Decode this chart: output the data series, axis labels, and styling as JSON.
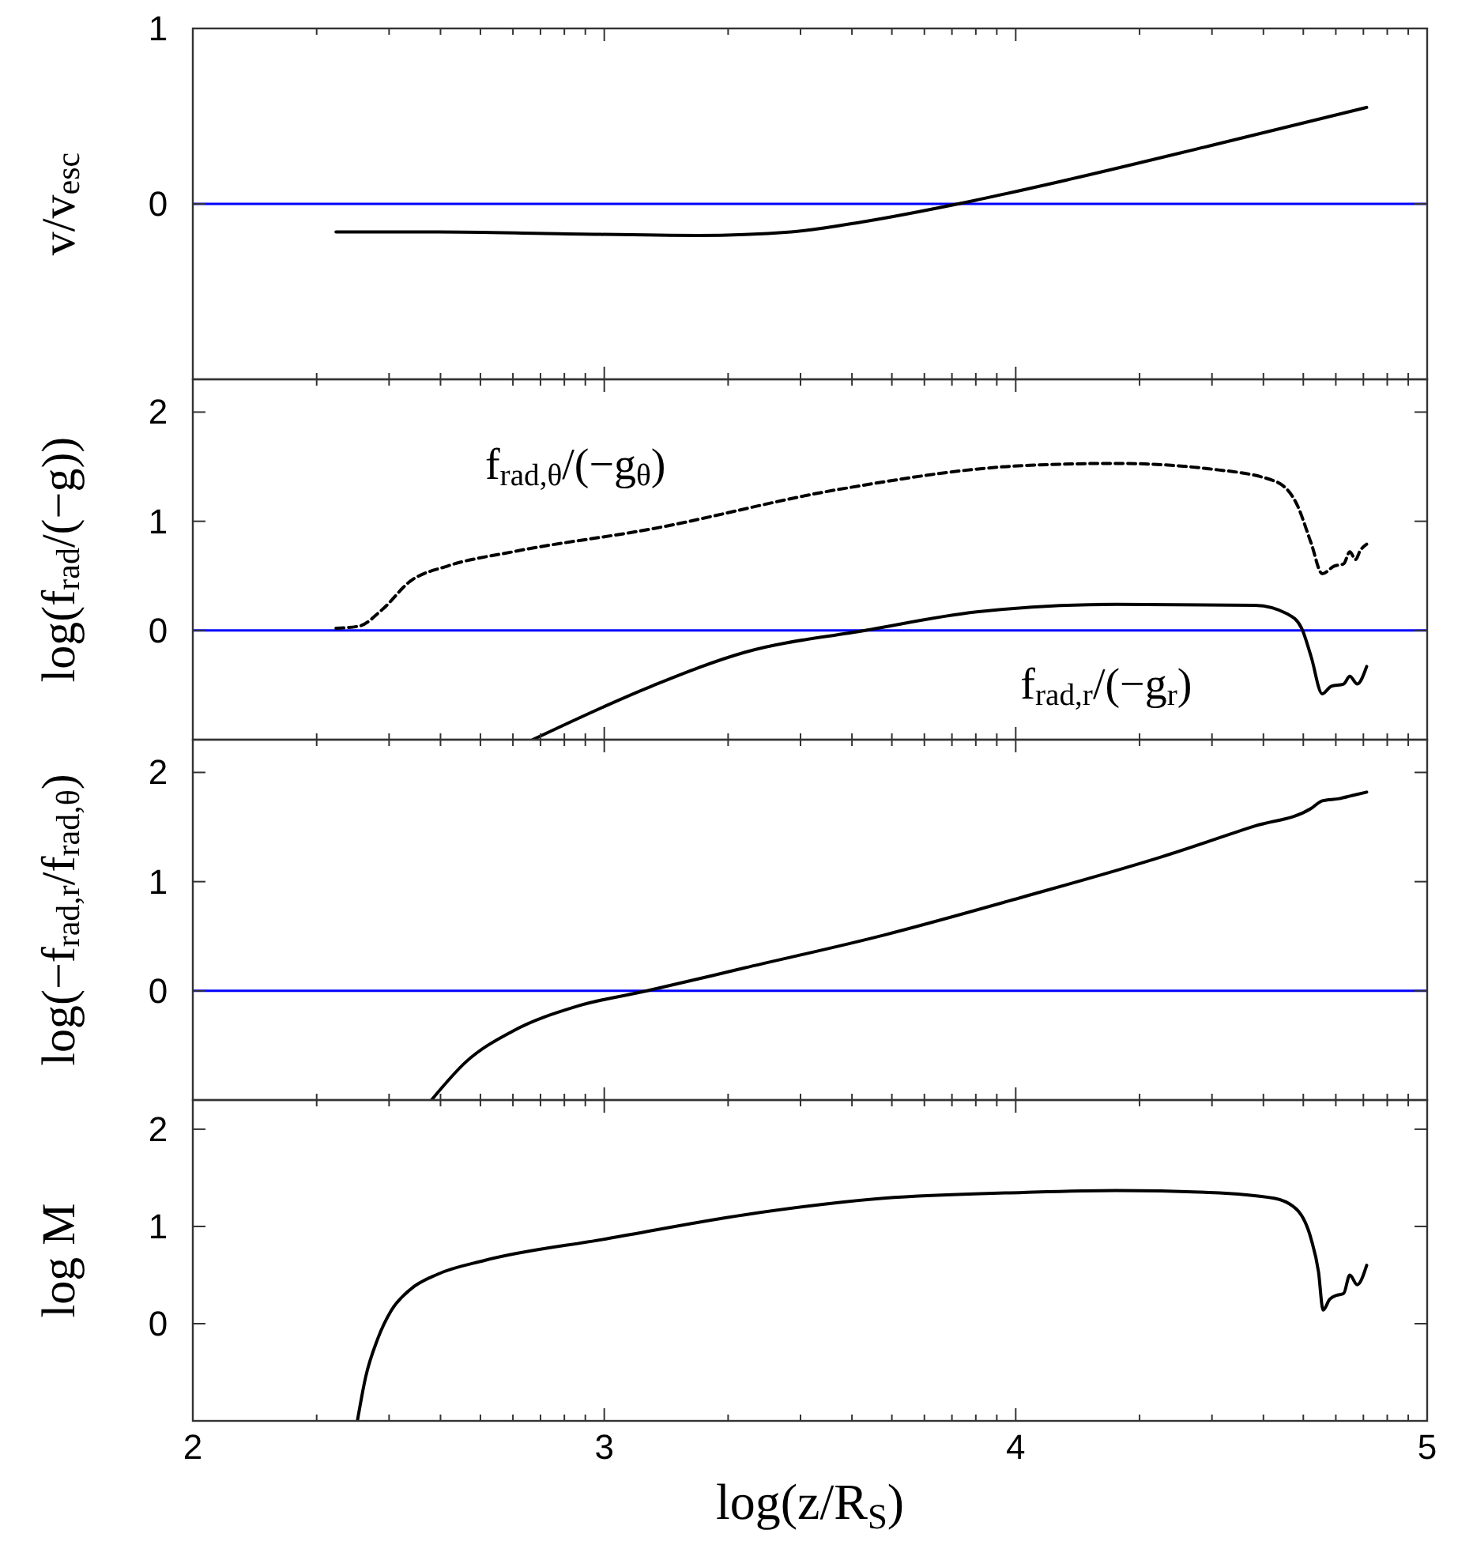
{
  "chart_data": [
    {
      "type": "line",
      "ylabel": "v/v$_{esc}$",
      "xlim": [
        2,
        5
      ],
      "ylim": [
        -1,
        1
      ],
      "yticks": [
        0,
        1
      ],
      "tick_labels": "y",
      "xticks": [
        2,
        {
          "value": 2.301,
          "label": null
        },
        {
          "value": 2.477,
          "label": null
        },
        {
          "value": 2.602,
          "label": null
        },
        {
          "value": 2.699,
          "label": null
        },
        {
          "value": 2.778,
          "label": null
        },
        {
          "value": 2.845,
          "label": null
        },
        {
          "value": 2.903,
          "label": null
        },
        {
          "value": 2.954,
          "label": null
        },
        3,
        {
          "value": 3.301,
          "label": null
        },
        {
          "value": 3.477,
          "label": null
        },
        {
          "value": 3.602,
          "label": null
        },
        {
          "value": 3.699,
          "label": null
        },
        {
          "value": 3.778,
          "label": null
        },
        {
          "value": 3.845,
          "label": null
        },
        {
          "value": 3.903,
          "label": null
        },
        {
          "value": 3.954,
          "label": null
        },
        4,
        {
          "value": 4.301,
          "label": null
        },
        {
          "value": 4.477,
          "label": null
        },
        {
          "value": 4.602,
          "label": null
        },
        {
          "value": 4.699,
          "label": null
        },
        {
          "value": 4.778,
          "label": null
        },
        {
          "value": 4.845,
          "label": null
        },
        {
          "value": 4.903,
          "label": null
        },
        {
          "value": 4.954,
          "label": null
        },
        5
      ],
      "ref_lines": [
        {
          "axis": "y",
          "value": 0,
          "color": "#0000ff"
        }
      ],
      "series": [
        {
          "color": "#000000",
          "line_style": "solid",
          "x": [
            2.348,
            2.596,
            2.889,
            3.228,
            3.454,
            3.634,
            3.86,
            4.131,
            4.47,
            4.853
          ],
          "values": [
            -0.16,
            -0.16,
            -0.17,
            -0.18,
            -0.16,
            -0.1,
            0,
            0.14,
            0.33,
            0.55
          ]
        }
      ]
    },
    {
      "type": "line",
      "ylabel": "log(f$_{rad}$/(−g))",
      "xlim": [
        2,
        5
      ],
      "ylim": [
        -1,
        2.3
      ],
      "yticks": [
        0,
        1,
        2
      ],
      "tick_labels": "y",
      "xticks": [
        2,
        {
          "value": 2.301,
          "label": null
        },
        {
          "value": 2.477,
          "label": null
        },
        {
          "value": 2.602,
          "label": null
        },
        {
          "value": 2.699,
          "label": null
        },
        {
          "value": 2.778,
          "label": null
        },
        {
          "value": 2.845,
          "label": null
        },
        {
          "value": 2.903,
          "label": null
        },
        {
          "value": 2.954,
          "label": null
        },
        3,
        {
          "value": 3.301,
          "label": null
        },
        {
          "value": 3.477,
          "label": null
        },
        {
          "value": 3.602,
          "label": null
        },
        {
          "value": 3.699,
          "label": null
        },
        {
          "value": 3.778,
          "label": null
        },
        {
          "value": 3.845,
          "label": null
        },
        {
          "value": 3.903,
          "label": null
        },
        {
          "value": 3.954,
          "label": null
        },
        4,
        {
          "value": 4.301,
          "label": null
        },
        {
          "value": 4.477,
          "label": null
        },
        {
          "value": 4.602,
          "label": null
        },
        {
          "value": 4.699,
          "label": null
        },
        {
          "value": 4.778,
          "label": null
        },
        {
          "value": 4.845,
          "label": null
        },
        {
          "value": 4.903,
          "label": null
        },
        {
          "value": 4.954,
          "label": null
        },
        5
      ],
      "ref_lines": [
        {
          "axis": "y",
          "value": 0,
          "color": "#0000ff"
        }
      ],
      "series": [
        {
          "name": "f$_{rad,θ}$/(−g$_{θ}$)",
          "color": "#000000",
          "line_style": "dashed",
          "x": [
            2.348,
            2.404,
            2.46,
            2.528,
            2.619,
            2.777,
            3.115,
            3.567,
            4.018,
            4.244,
            4.47,
            4.628,
            4.684,
            4.718,
            4.745,
            4.774,
            4.797,
            4.812,
            4.826,
            4.837,
            4.853
          ],
          "values": [
            0.02,
            0.04,
            0.19,
            0.45,
            0.59,
            0.72,
            0.93,
            1.29,
            1.51,
            1.53,
            1.48,
            1.37,
            1.15,
            0.8,
            0.52,
            0.59,
            0.61,
            0.72,
            0.65,
            0.73,
            0.79
          ]
        },
        {
          "name": "f$_{rad,r}$/(−g$_{r}$)",
          "color": "#000000",
          "line_style": "solid",
          "x": [
            2.826,
            3.115,
            3.341,
            3.634,
            3.905,
            4.244,
            4.582,
            4.661,
            4.695,
            4.718,
            4.745,
            4.767,
            4.797,
            4.812,
            4.83,
            4.853
          ],
          "values": [
            -1,
            -0.51,
            -0.2,
            0,
            0.17,
            0.24,
            0.23,
            0.15,
            0.02,
            -0.24,
            -0.58,
            -0.51,
            -0.49,
            -0.42,
            -0.49,
            -0.33
          ]
        }
      ]
    },
    {
      "type": "line",
      "ylabel": "log(−f$_{rad,r}$/f$_{rad,θ}$)",
      "xlim": [
        2,
        5
      ],
      "ylim": [
        -1,
        2.3
      ],
      "yticks": [
        0,
        1,
        2
      ],
      "tick_labels": "y",
      "xticks": [
        2,
        {
          "value": 2.301,
          "label": null
        },
        {
          "value": 2.477,
          "label": null
        },
        {
          "value": 2.602,
          "label": null
        },
        {
          "value": 2.699,
          "label": null
        },
        {
          "value": 2.778,
          "label": null
        },
        {
          "value": 2.845,
          "label": null
        },
        {
          "value": 2.903,
          "label": null
        },
        {
          "value": 2.954,
          "label": null
        },
        3,
        {
          "value": 3.301,
          "label": null
        },
        {
          "value": 3.477,
          "label": null
        },
        {
          "value": 3.602,
          "label": null
        },
        {
          "value": 3.699,
          "label": null
        },
        {
          "value": 3.778,
          "label": null
        },
        {
          "value": 3.845,
          "label": null
        },
        {
          "value": 3.903,
          "label": null
        },
        {
          "value": 3.954,
          "label": null
        },
        4,
        {
          "value": 4.301,
          "label": null
        },
        {
          "value": 4.477,
          "label": null
        },
        {
          "value": 4.602,
          "label": null
        },
        {
          "value": 4.699,
          "label": null
        },
        {
          "value": 4.778,
          "label": null
        },
        {
          "value": 4.845,
          "label": null
        },
        {
          "value": 4.903,
          "label": null
        },
        {
          "value": 4.954,
          "label": null
        },
        5
      ],
      "ref_lines": [
        {
          "axis": "y",
          "value": 0,
          "color": "#0000ff"
        }
      ],
      "series": [
        {
          "color": "#000000",
          "line_style": "solid",
          "x": [
            2.58,
            2.664,
            2.777,
            2.935,
            3.104,
            3.341,
            3.679,
            4.018,
            4.357,
            4.582,
            4.718,
            4.745,
            4.786,
            4.819,
            4.853
          ],
          "values": [
            -1,
            -0.65,
            -0.37,
            -0.14,
            0,
            0.21,
            0.51,
            0.86,
            1.23,
            1.51,
            1.67,
            1.74,
            1.76,
            1.79,
            1.82
          ]
        }
      ]
    },
    {
      "type": "line",
      "ylabel": "log M",
      "xlabel": "log(z/R$_{S}$)",
      "xlim": [
        2,
        5
      ],
      "ylim": [
        -1,
        2.3
      ],
      "yticks": [
        0,
        1,
        2
      ],
      "xticks": [
        2,
        {
          "value": 2.301,
          "label": null
        },
        {
          "value": 2.477,
          "label": null
        },
        {
          "value": 2.602,
          "label": null
        },
        {
          "value": 2.699,
          "label": null
        },
        {
          "value": 2.778,
          "label": null
        },
        {
          "value": 2.845,
          "label": null
        },
        {
          "value": 2.903,
          "label": null
        },
        {
          "value": 2.954,
          "label": null
        },
        3,
        {
          "value": 3.301,
          "label": null
        },
        {
          "value": 3.477,
          "label": null
        },
        {
          "value": 3.602,
          "label": null
        },
        {
          "value": 3.699,
          "label": null
        },
        {
          "value": 3.778,
          "label": null
        },
        {
          "value": 3.845,
          "label": null
        },
        {
          "value": 3.903,
          "label": null
        },
        {
          "value": 3.954,
          "label": null
        },
        4,
        {
          "value": 4.301,
          "label": null
        },
        {
          "value": 4.477,
          "label": null
        },
        {
          "value": 4.602,
          "label": null
        },
        {
          "value": 4.699,
          "label": null
        },
        {
          "value": 4.778,
          "label": null
        },
        {
          "value": 4.845,
          "label": null
        },
        {
          "value": 4.903,
          "label": null
        },
        {
          "value": 4.954,
          "label": null
        },
        5
      ],
      "series": [
        {
          "color": "#000000",
          "line_style": "solid",
          "x": [
            2.4,
            2.42,
            2.449,
            2.483,
            2.528,
            2.596,
            2.709,
            3.002,
            3.341,
            3.679,
            4.018,
            4.244,
            4.47,
            4.628,
            4.684,
            4.718,
            4.736,
            4.747,
            4.763,
            4.779,
            4.797,
            4.812,
            4.83,
            4.853
          ],
          "values": [
            -1,
            -0.55,
            -0.16,
            0.14,
            0.35,
            0.51,
            0.65,
            0.87,
            1.12,
            1.29,
            1.35,
            1.37,
            1.35,
            1.29,
            1.17,
            0.87,
            0.53,
            0.14,
            0.25,
            0.29,
            0.31,
            0.5,
            0.4,
            0.6
          ]
        }
      ]
    }
  ]
}
